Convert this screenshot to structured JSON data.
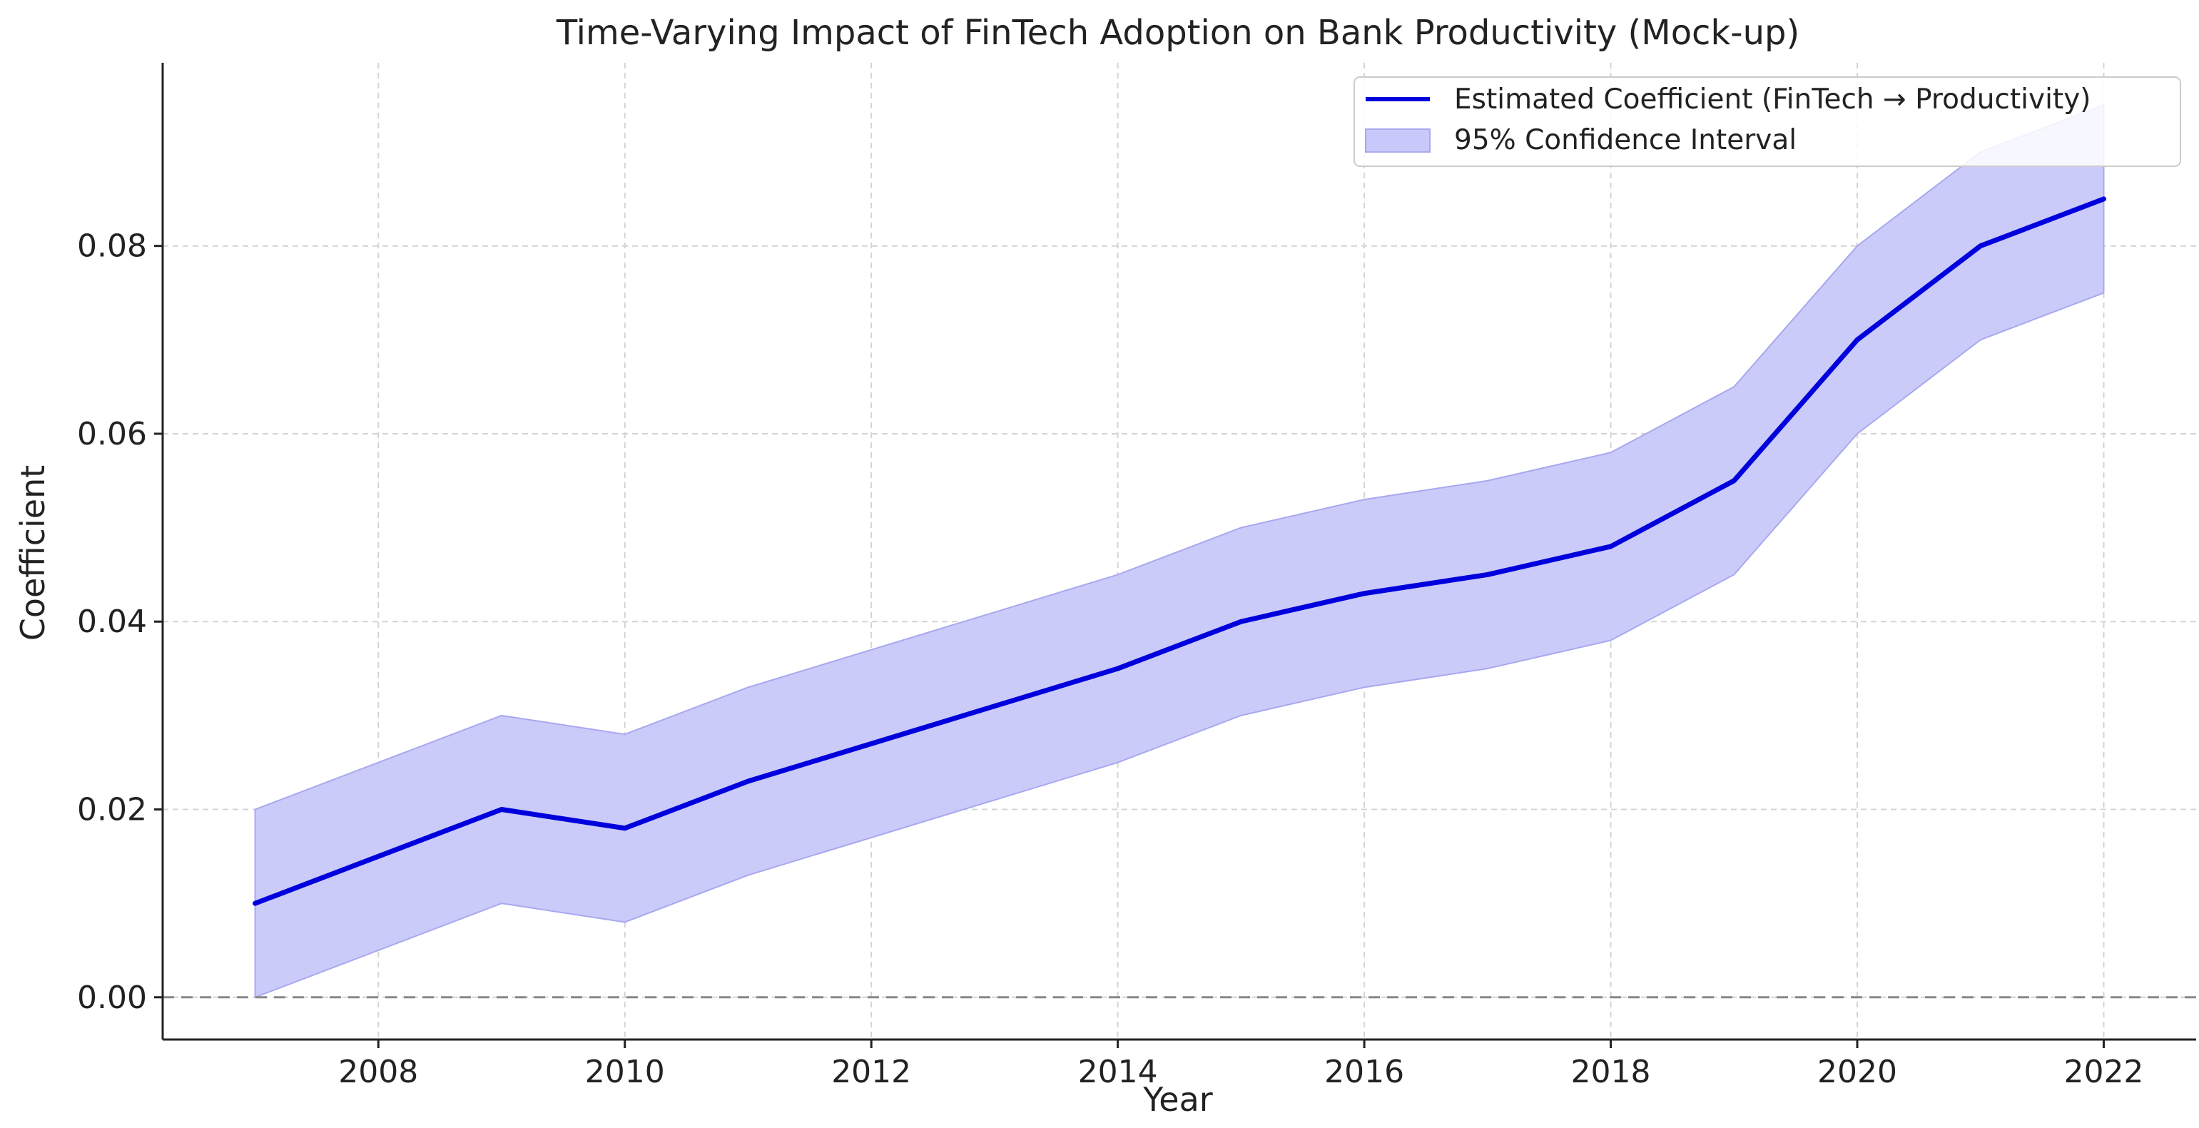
{
  "chart_data": {
    "type": "line",
    "title": "Time-Varying Impact of FinTech Adoption on Bank Productivity (Mock-up)",
    "xlabel": "Year",
    "ylabel": "Coefficient",
    "x": [
      2007,
      2008,
      2009,
      2010,
      2011,
      2012,
      2013,
      2014,
      2015,
      2016,
      2017,
      2018,
      2019,
      2020,
      2021,
      2022
    ],
    "series": [
      {
        "name": "Estimated Coefficient (FinTech → Productivity)",
        "color": "#0000dd",
        "values": [
          0.01,
          0.015,
          0.02,
          0.018,
          0.023,
          0.027,
          0.031,
          0.035,
          0.04,
          0.043,
          0.045,
          0.048,
          0.055,
          0.07,
          0.08,
          0.085
        ]
      }
    ],
    "confidence_interval": {
      "name": "95% Confidence Interval",
      "color": "#c8c8fa",
      "edge_color": "#a8a8f0",
      "lower": [
        0.0,
        0.005,
        0.01,
        0.008,
        0.013,
        0.017,
        0.021,
        0.025,
        0.03,
        0.033,
        0.035,
        0.038,
        0.045,
        0.06,
        0.07,
        0.075
      ],
      "upper": [
        0.02,
        0.025,
        0.03,
        0.028,
        0.033,
        0.037,
        0.041,
        0.045,
        0.05,
        0.053,
        0.055,
        0.058,
        0.065,
        0.08,
        0.09,
        0.095
      ]
    },
    "reference_line": {
      "y": 0.0,
      "style": "dashed",
      "color": "#888888"
    },
    "xlim": [
      2006.25,
      2022.75
    ],
    "ylim": [
      -0.0045,
      0.0995
    ],
    "xticks": [
      2008,
      2010,
      2012,
      2014,
      2016,
      2018,
      2020,
      2022
    ],
    "xtick_labels": [
      "2008",
      "2010",
      "2012",
      "2014",
      "2016",
      "2018",
      "2020",
      "2022"
    ],
    "yticks": [
      0.0,
      0.02,
      0.04,
      0.06,
      0.08
    ],
    "ytick_labels": [
      "0.00",
      "0.02",
      "0.04",
      "0.06",
      "0.08"
    ],
    "grid": true,
    "legend_position": "top-right"
  }
}
